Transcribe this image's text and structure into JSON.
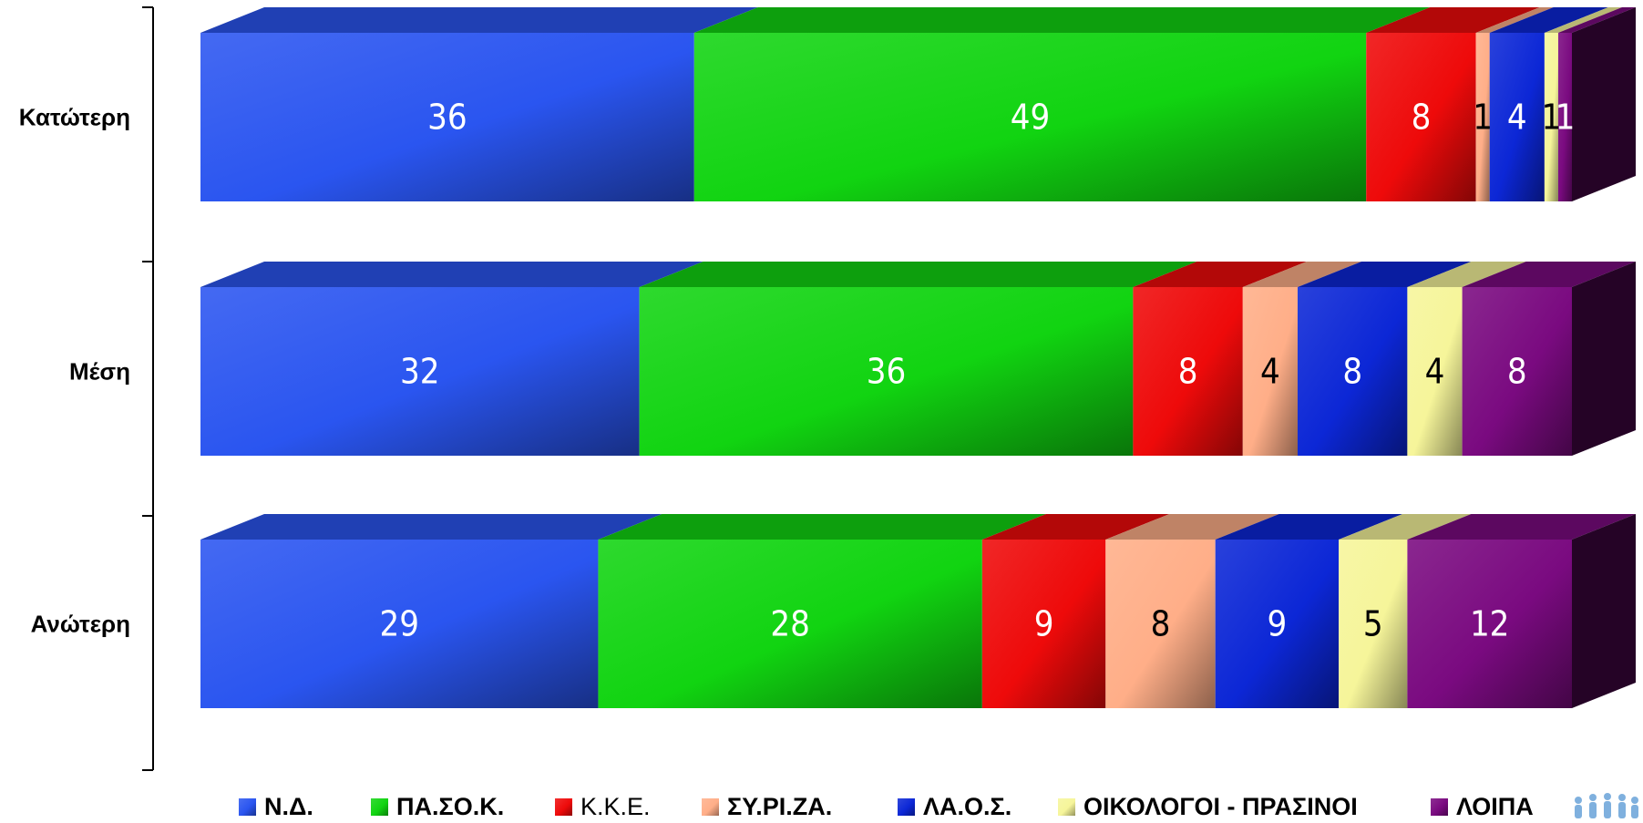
{
  "chart_data": {
    "type": "bar",
    "orientation": "horizontal",
    "stacked": true,
    "categories": [
      "Κατώτερη",
      "Μέση",
      "Ανώτερη"
    ],
    "series": [
      {
        "name": "Ν.Δ.",
        "color": "#2a55f0",
        "values": [
          36,
          32,
          29
        ]
      },
      {
        "name": "ΠΑ.ΣΟ.Κ.",
        "color": "#11d411",
        "values": [
          49,
          36,
          28
        ]
      },
      {
        "name": "Κ.Κ.Ε.",
        "color": "#ee0a0a",
        "values": [
          8,
          8,
          9
        ]
      },
      {
        "name": "ΣΥ.ΡΙ.ΖΑ.",
        "color": "#ffae88",
        "values": [
          1,
          4,
          8
        ]
      },
      {
        "name": "ΛΑ.Ο.Σ.",
        "color": "#0c27d6",
        "values": [
          4,
          8,
          9
        ]
      },
      {
        "name": "ΟΙΚΟΛΟΓΟΙ - ΠΡΑΣΙΝΟΙ",
        "color": "#f6f59a",
        "values": [
          1,
          4,
          5
        ]
      },
      {
        "name": "ΛΟΙΠΑ",
        "color": "#7a0a80",
        "values": [
          1,
          8,
          12
        ]
      }
    ],
    "legend_position": "bottom",
    "grid": false,
    "title": "",
    "xlabel": "",
    "ylabel": ""
  }
}
